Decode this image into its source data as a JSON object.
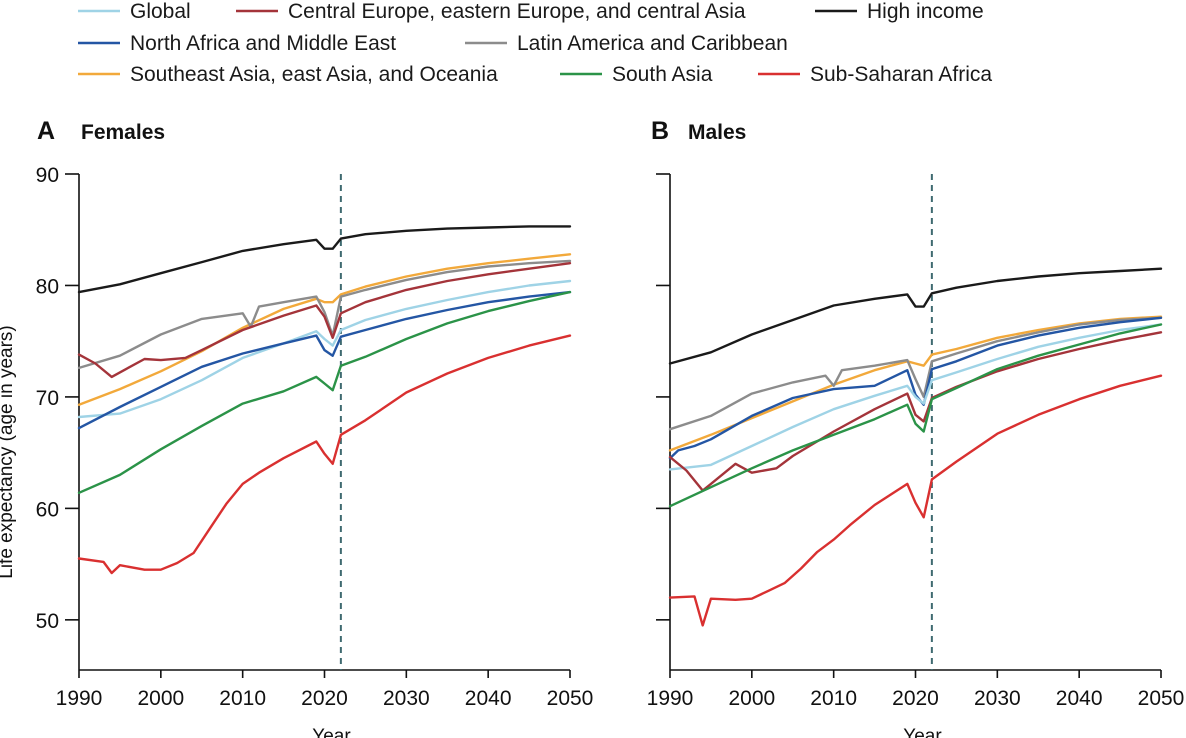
{
  "legend": {
    "items": [
      {
        "key": "global",
        "label": "Global",
        "color": "#9fd3e6"
      },
      {
        "key": "ceeca",
        "label": "Central Europe, eastern Europe, and central Asia",
        "color": "#a4343a"
      },
      {
        "key": "high",
        "label": "High income",
        "color": "#1a1a1a"
      },
      {
        "key": "nafme",
        "label": "North Africa and Middle East",
        "color": "#2456a4"
      },
      {
        "key": "latam",
        "label": "Latin America and Caribbean",
        "color": "#8c8c8c"
      },
      {
        "key": "seao",
        "label": "Southeast Asia, east Asia, and Oceania",
        "color": "#f2a93b"
      },
      {
        "key": "sasia",
        "label": "South Asia",
        "color": "#2b9348"
      },
      {
        "key": "ssa",
        "label": "Sub-Saharan Africa",
        "color": "#d93030"
      }
    ]
  },
  "axes": {
    "x_title": "Year",
    "y_title": "Life expectancy (age in years)",
    "x_ticks": [
      "1990",
      "2000",
      "2010",
      "2020",
      "2030",
      "2040",
      "2050"
    ],
    "y_ticks": [
      "50",
      "60",
      "70",
      "80",
      "90"
    ]
  },
  "chart_data": [
    {
      "type": "line",
      "panel_letter": "A",
      "title": "Females",
      "xlabel": "Year",
      "ylabel": "Life expectancy (age in years)",
      "xlim": [
        1990,
        2050
      ],
      "ylim": [
        45.5,
        90
      ],
      "y_ticks": [
        50,
        60,
        70,
        80,
        90
      ],
      "forecast_start": 2022,
      "series": [
        {
          "key": "high",
          "name": "High income",
          "x": [
            1990,
            1995,
            2000,
            2005,
            2010,
            2015,
            2019,
            2020,
            2021,
            2022,
            2025,
            2030,
            2035,
            2040,
            2045,
            2050
          ],
          "values": [
            79.4,
            80.1,
            81.1,
            82.1,
            83.1,
            83.7,
            84.1,
            83.3,
            83.3,
            84.2,
            84.6,
            84.9,
            85.1,
            85.2,
            85.3,
            85.3
          ]
        },
        {
          "key": "seao",
          "name": "Southeast Asia, east Asia, and Oceania",
          "x": [
            1990,
            1995,
            2000,
            2005,
            2010,
            2015,
            2019,
            2020,
            2021,
            2022,
            2025,
            2030,
            2035,
            2040,
            2045,
            2050
          ],
          "values": [
            69.3,
            70.7,
            72.3,
            74.1,
            76.2,
            77.9,
            78.8,
            78.5,
            78.5,
            79.2,
            79.9,
            80.8,
            81.5,
            82.0,
            82.4,
            82.8
          ]
        },
        {
          "key": "latam",
          "name": "Latin America and Caribbean",
          "x": [
            1990,
            1995,
            2000,
            2005,
            2010,
            2011,
            2012,
            2015,
            2019,
            2020,
            2021,
            2022,
            2025,
            2030,
            2035,
            2040,
            2045,
            2050
          ],
          "values": [
            72.6,
            73.7,
            75.6,
            77.0,
            77.5,
            76.3,
            78.1,
            78.5,
            79.0,
            77.6,
            75.5,
            79.0,
            79.6,
            80.5,
            81.2,
            81.7,
            82.0,
            82.2
          ]
        },
        {
          "key": "ceeca",
          "name": "Central Europe, eastern Europe, and central Asia",
          "x": [
            1990,
            1992,
            1994,
            1995,
            1998,
            2000,
            2003,
            2005,
            2010,
            2015,
            2019,
            2020,
            2021,
            2022,
            2025,
            2030,
            2035,
            2040,
            2045,
            2050
          ],
          "values": [
            73.8,
            73.0,
            71.8,
            72.2,
            73.4,
            73.3,
            73.5,
            74.2,
            76.0,
            77.3,
            78.2,
            77.2,
            75.3,
            77.5,
            78.5,
            79.6,
            80.4,
            81.0,
            81.5,
            82.0
          ]
        },
        {
          "key": "global",
          "name": "Global",
          "x": [
            1990,
            1995,
            2000,
            2005,
            2010,
            2015,
            2019,
            2020,
            2021,
            2022,
            2025,
            2030,
            2035,
            2040,
            2045,
            2050
          ],
          "values": [
            68.2,
            68.5,
            69.8,
            71.5,
            73.5,
            74.8,
            75.9,
            75.2,
            74.6,
            76.0,
            76.9,
            77.9,
            78.7,
            79.4,
            80.0,
            80.4
          ]
        },
        {
          "key": "nafme",
          "name": "North Africa and Middle East",
          "x": [
            1990,
            1995,
            2000,
            2005,
            2010,
            2015,
            2019,
            2020,
            2021,
            2022,
            2025,
            2030,
            2035,
            2040,
            2045,
            2050
          ],
          "values": [
            67.2,
            69.1,
            70.9,
            72.7,
            73.9,
            74.8,
            75.5,
            74.2,
            73.7,
            75.4,
            76.0,
            77.0,
            77.8,
            78.5,
            79.0,
            79.4
          ]
        },
        {
          "key": "sasia",
          "name": "South Asia",
          "x": [
            1990,
            1995,
            2000,
            2005,
            2010,
            2015,
            2019,
            2020,
            2021,
            2022,
            2025,
            2030,
            2035,
            2040,
            2045,
            2050
          ],
          "values": [
            61.4,
            63.0,
            65.3,
            67.4,
            69.4,
            70.5,
            71.8,
            71.2,
            70.6,
            72.8,
            73.6,
            75.2,
            76.6,
            77.7,
            78.6,
            79.4
          ]
        },
        {
          "key": "ssa",
          "name": "Sub-Saharan Africa",
          "x": [
            1990,
            1993,
            1994,
            1995,
            1998,
            2000,
            2002,
            2004,
            2006,
            2008,
            2010,
            2012,
            2015,
            2019,
            2020,
            2021,
            2022,
            2025,
            2030,
            2035,
            2040,
            2045,
            2050
          ],
          "values": [
            55.5,
            55.2,
            54.2,
            54.9,
            54.5,
            54.5,
            55.1,
            56.0,
            58.2,
            60.4,
            62.2,
            63.2,
            64.5,
            66.0,
            64.9,
            64.0,
            66.6,
            67.9,
            70.4,
            72.1,
            73.5,
            74.6,
            75.5
          ]
        }
      ]
    },
    {
      "type": "line",
      "panel_letter": "B",
      "title": "Males",
      "xlabel": "Year",
      "ylabel": "Life expectancy (age in years)",
      "xlim": [
        1990,
        2050
      ],
      "ylim": [
        45.5,
        90
      ],
      "y_ticks": [
        50,
        60,
        70,
        80,
        90
      ],
      "forecast_start": 2022,
      "series": [
        {
          "key": "high",
          "name": "High income",
          "x": [
            1990,
            1995,
            2000,
            2005,
            2010,
            2015,
            2019,
            2020,
            2021,
            2022,
            2025,
            2030,
            2035,
            2040,
            2045,
            2050
          ],
          "values": [
            73.0,
            74.0,
            75.6,
            76.9,
            78.2,
            78.8,
            79.2,
            78.1,
            78.1,
            79.3,
            79.8,
            80.4,
            80.8,
            81.1,
            81.3,
            81.5
          ]
        },
        {
          "key": "seao",
          "name": "Southeast Asia, east Asia, and Oceania",
          "x": [
            1990,
            1995,
            2000,
            2005,
            2010,
            2015,
            2019,
            2020,
            2021,
            2022,
            2025,
            2030,
            2035,
            2040,
            2045,
            2050
          ],
          "values": [
            65.2,
            66.6,
            68.1,
            69.6,
            71.1,
            72.4,
            73.2,
            73.0,
            72.8,
            73.8,
            74.3,
            75.3,
            76.0,
            76.6,
            77.0,
            77.2
          ]
        },
        {
          "key": "latam",
          "name": "Latin America and Caribbean",
          "x": [
            1990,
            1995,
            2000,
            2005,
            2009,
            2010,
            2011,
            2015,
            2019,
            2020,
            2021,
            2022,
            2025,
            2030,
            2035,
            2040,
            2045,
            2050
          ],
          "values": [
            67.1,
            68.3,
            70.3,
            71.3,
            71.9,
            71.0,
            72.4,
            72.8,
            73.3,
            71.6,
            70.0,
            73.2,
            73.9,
            75.0,
            75.8,
            76.5,
            76.9,
            77.1
          ]
        },
        {
          "key": "nafme",
          "name": "North Africa and Middle East",
          "x": [
            1990,
            1991,
            1993,
            1995,
            2000,
            2005,
            2010,
            2015,
            2019,
            2020,
            2021,
            2022,
            2025,
            2030,
            2035,
            2040,
            2045,
            2050
          ],
          "values": [
            64.5,
            65.2,
            65.6,
            66.2,
            68.3,
            69.9,
            70.7,
            71.0,
            72.4,
            70.2,
            69.3,
            72.5,
            73.2,
            74.6,
            75.5,
            76.2,
            76.7,
            77.1
          ]
        },
        {
          "key": "global",
          "name": "Global",
          "x": [
            1990,
            1995,
            2000,
            2005,
            2010,
            2015,
            2019,
            2020,
            2021,
            2022,
            2025,
            2030,
            2035,
            2040,
            2045,
            2050
          ],
          "values": [
            63.5,
            63.9,
            65.6,
            67.3,
            68.9,
            70.1,
            71.0,
            70.0,
            69.4,
            71.5,
            72.2,
            73.4,
            74.5,
            75.3,
            76.0,
            76.5
          ]
        },
        {
          "key": "ceeca",
          "name": "Central Europe, eastern Europe, and central Asia",
          "x": [
            1990,
            1992,
            1994,
            1995,
            1998,
            2000,
            2003,
            2005,
            2010,
            2015,
            2019,
            2020,
            2021,
            2022,
            2025,
            2030,
            2035,
            2040,
            2045,
            2050
          ],
          "values": [
            64.6,
            63.4,
            61.6,
            62.2,
            64.0,
            63.2,
            63.6,
            64.7,
            66.9,
            68.9,
            70.3,
            68.4,
            67.8,
            69.9,
            70.9,
            72.3,
            73.4,
            74.3,
            75.1,
            75.8
          ]
        },
        {
          "key": "sasia",
          "name": "South Asia",
          "x": [
            1990,
            1995,
            2000,
            2005,
            2010,
            2015,
            2019,
            2020,
            2021,
            2022,
            2025,
            2030,
            2035,
            2040,
            2045,
            2050
          ],
          "values": [
            60.2,
            61.9,
            63.6,
            65.2,
            66.6,
            68.0,
            69.3,
            67.6,
            66.9,
            69.8,
            70.8,
            72.5,
            73.7,
            74.7,
            75.7,
            76.5
          ]
        },
        {
          "key": "ssa",
          "name": "Sub-Saharan Africa",
          "x": [
            1990,
            1993,
            1994,
            1995,
            1998,
            2000,
            2002,
            2004,
            2006,
            2008,
            2010,
            2012,
            2015,
            2019,
            2020,
            2021,
            2022,
            2025,
            2030,
            2035,
            2040,
            2045,
            2050
          ],
          "values": [
            52.0,
            52.1,
            49.5,
            51.9,
            51.8,
            51.9,
            52.6,
            53.3,
            54.6,
            56.1,
            57.2,
            58.5,
            60.3,
            62.2,
            60.5,
            59.2,
            62.6,
            64.2,
            66.7,
            68.4,
            69.8,
            71.0,
            71.9
          ]
        }
      ]
    }
  ]
}
